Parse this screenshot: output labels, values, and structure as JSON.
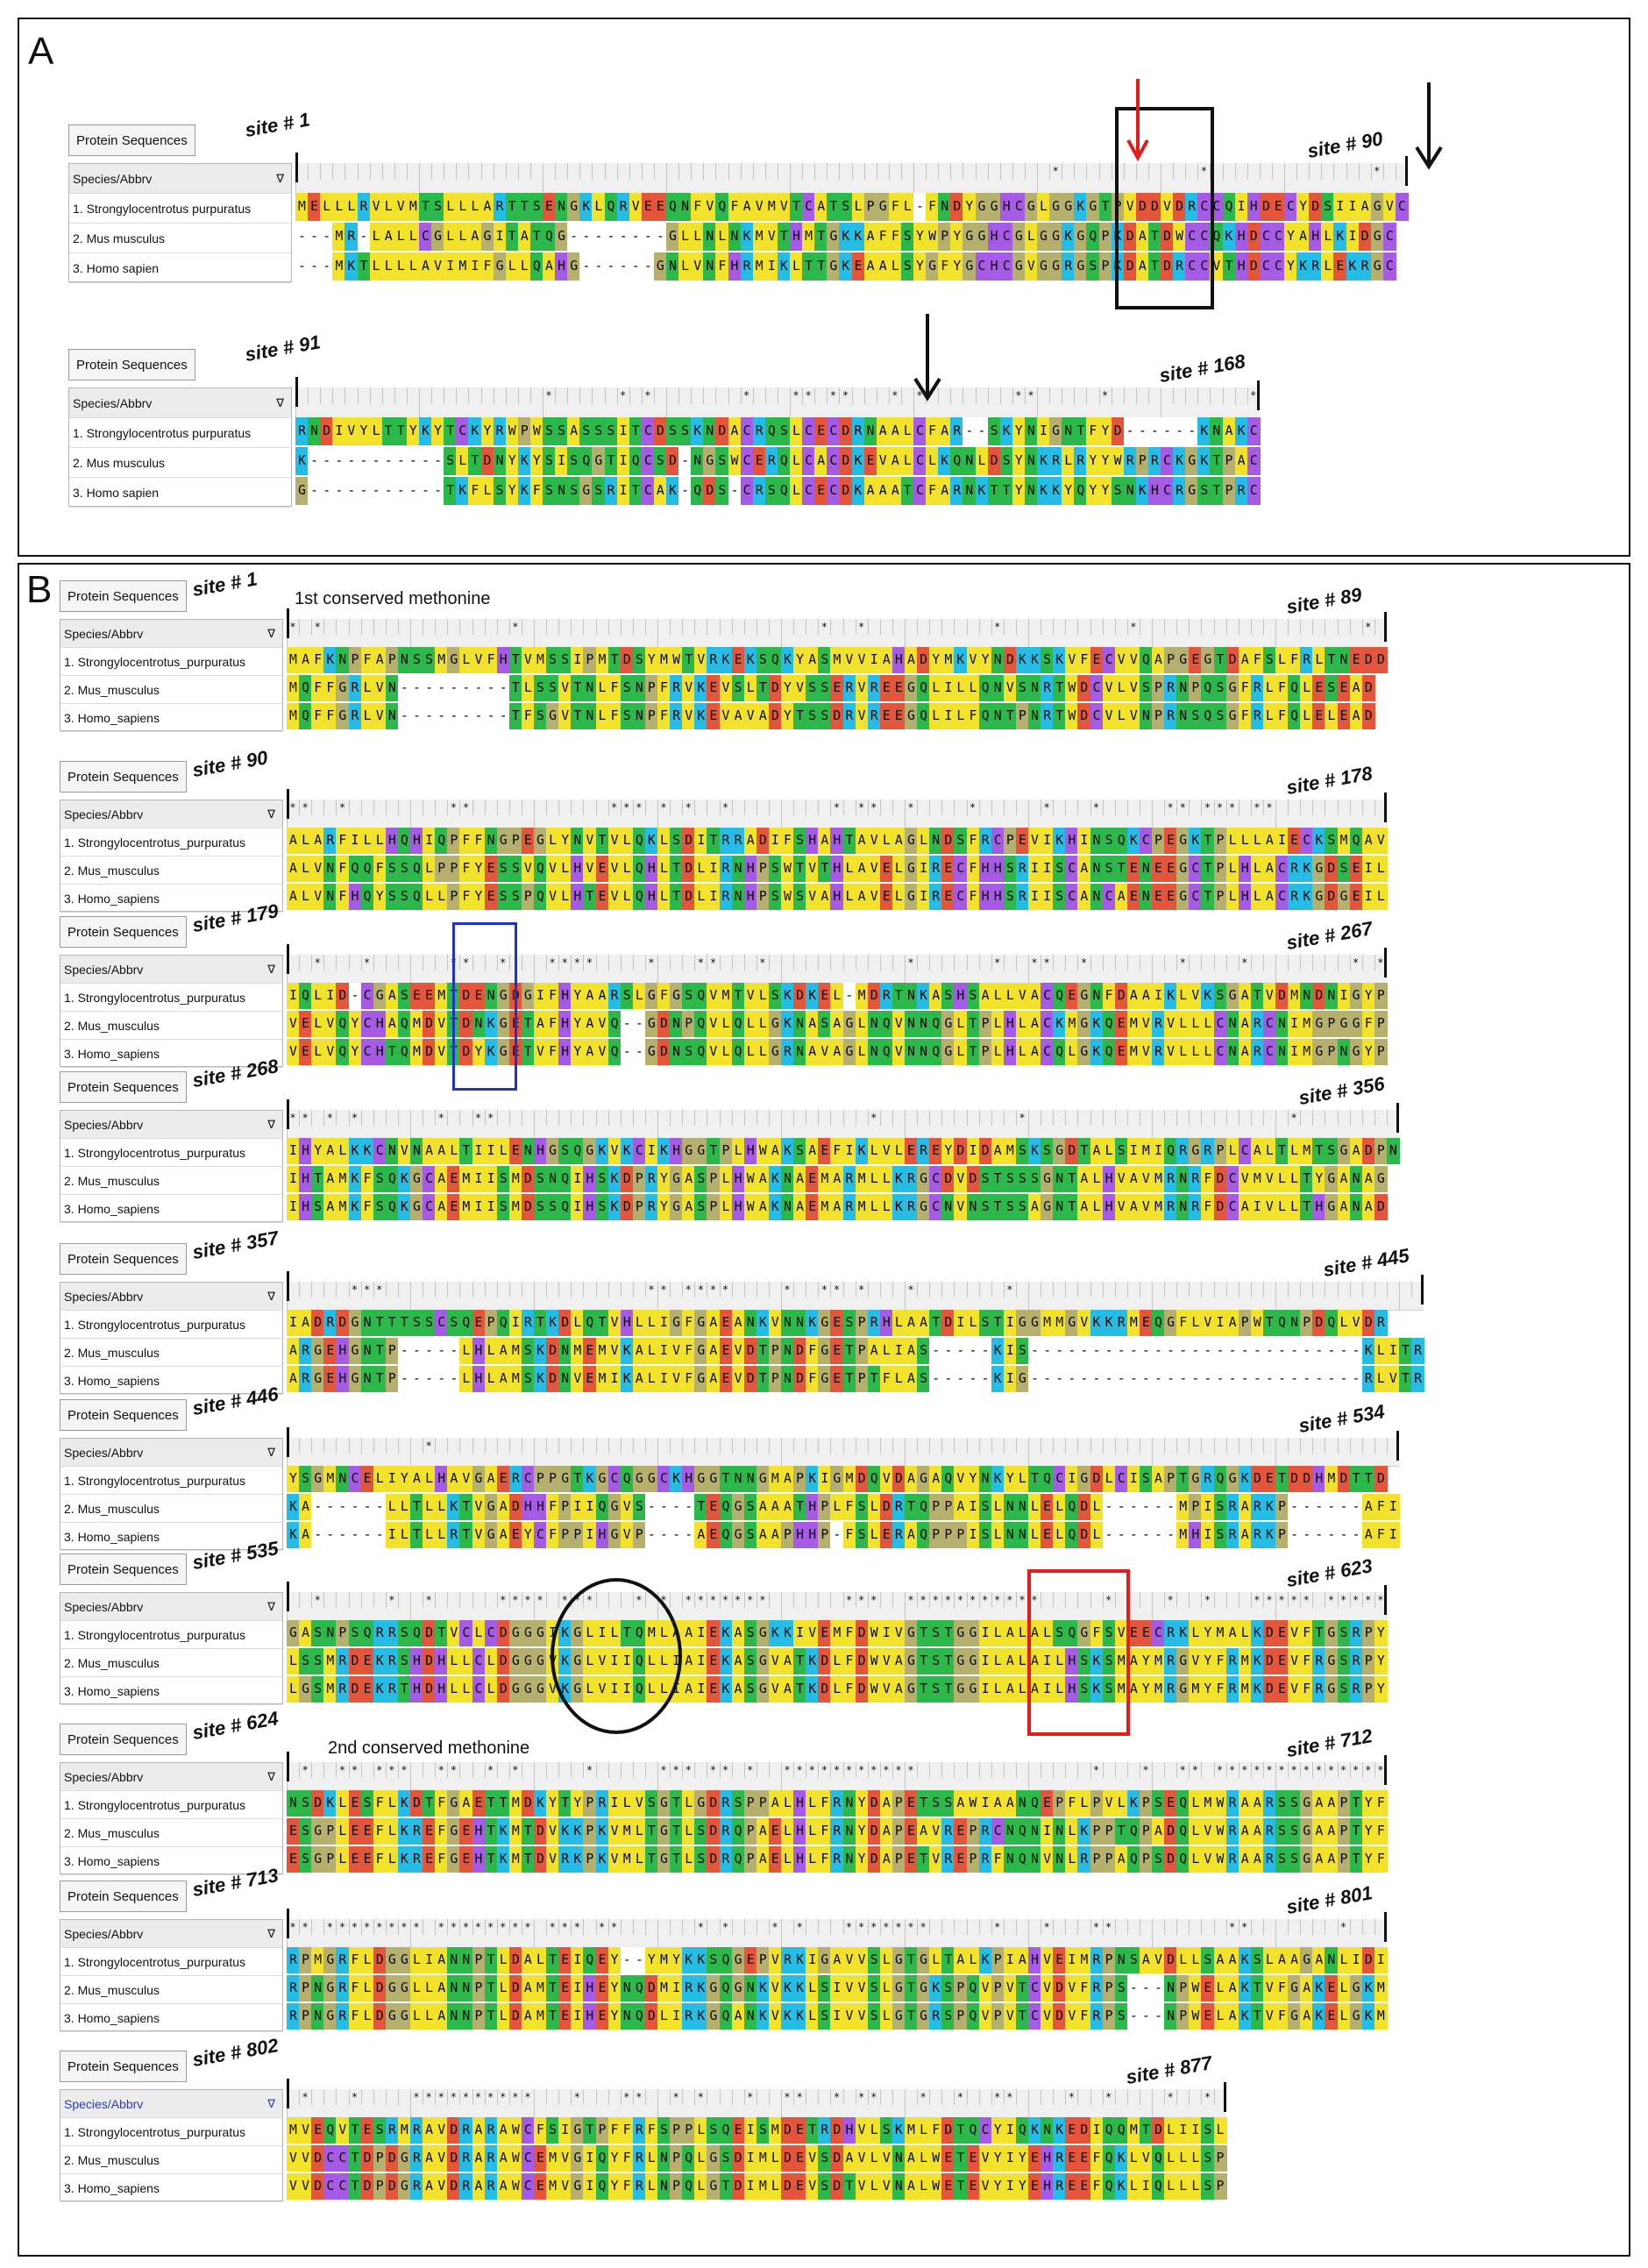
{
  "panels": {
    "a_label": "A",
    "b_label": "B"
  },
  "common": {
    "tab_label": "Protein Sequences",
    "species_header": "Species/Abbrv"
  },
  "colors": {
    "A": "#f2e22c",
    "L": "#f2e22c",
    "I": "#f2e22c",
    "V": "#f2e22c",
    "F": "#f2e22c",
    "M": "#f2e22c",
    "W": "#f2e22c",
    "Y": "#f2e22c",
    "G": "#b6b06e",
    "P": "#b6b06e",
    "S": "#2db84b",
    "T": "#2db84b",
    "N": "#2db84b",
    "Q": "#2db84b",
    "D": "#e3563b",
    "E": "#e3563b",
    "K": "#25bde6",
    "R": "#25bde6",
    "H": "#a65be4",
    "C": "#a65be4",
    "-": "#ffffff",
    "accent_red": "#e11d1d",
    "accent_blue": "#1f33c9"
  },
  "annotations": {
    "first_met": "1st conserved methonine",
    "second_met": "2nd conserved methonine"
  },
  "blocks": [
    {
      "panel": "A",
      "start_site": "site # 1",
      "end_site": "site # 90",
      "names": [
        "1. Strongylocentrotus purpuratus",
        "2. Mus musculus",
        "3. Homo sapien"
      ],
      "stars": ". . . . . . . . . . . . . . . . . . . . . . . . . . . . . . . . . . . . . . . . . . . . . . . . . . . . . . . . . . . . . . . . . . . . . . . . . . . . . . . . . . . . . . . . . . . . .",
      "rows": [
        "MELLLRVLVMTSLLLARTTSENGKLQRVEEQNFVQFAVMVTCATSLPGFL-FNDYGGHCGLGGKGTPVDDVDRCCQIHDECYDSIIAGVC",
        "---MR-LALLCGLLAGITATQG--------GLLNLNKMVTHMTGKKAFFSYWPYGGHCGLGGKGQPKDATDWCCQKHDCCYAHLKIDGC",
        "---MKTLLLLAVIMIFGLLQAHG------GNLVNFHRMIKLTTGKEAALSYGFYGCHCGVGGRGSPKDATDRCCVTHDCCYKRLEKRGC"
      ]
    },
    {
      "panel": "A",
      "start_site": "site # 91",
      "end_site": "site # 168",
      "names": [
        "1. Strongylocentrotus purpuratus",
        "2. Mus musculus",
        "3. Homo sapien"
      ],
      "rows": [
        "RNDIVYLTTYKYTCKYRWPWSSASSSITCDSSKNDACRQSLCECDRNAALCFAR--SKYNIGNTFYD------KNAKC",
        "K-----------SLTDNYKYSISQGTIQCSD-NGSWCERQLCACDKEVALCLKQNLDSYNKRLRYYWRPRCKGKTPAC",
        "G-----------TKFLSYKFSNSGSRITCAK-QDS-CRSQLCECDKAAATCFARNKTTYNKKYQYYSNKHCRGSTPRC"
      ]
    },
    {
      "panel": "B",
      "start_site": "site # 1",
      "end_site": "site # 89",
      "names": [
        "1. Strongylocentrotus_purpuratus",
        "2. Mus_musculus",
        "3. Homo_sapiens"
      ],
      "rows": [
        "MAFKNPFAPNSSMGLVFHTVMSSIPMTDSYMWTVRKEKSQKYASMVVIAHADYMKVYNDKKSKVFECVVQAPGEGTDAFSLFRLTNEDD",
        "MQFFGRLVN---------TLSSVTNLFSNPFRVKEVSLTDYVSSERVREEGQLILLQNVSNRTWDCVLVSPRNPQSGFRLFQLESEAD",
        "MQFFGRLVN---------TFSGVTNLFSNPFRVKEVAVADYTSSDRVREEGQLILFQNTPNRTWDCVLVNPRNSQSGFRLFQLELEAD"
      ]
    },
    {
      "panel": "B",
      "start_site": "site # 90",
      "end_site": "site # 178",
      "names": [
        "1. Strongylocentrotus_purpuratus",
        "2. Mus_musculus",
        "3. Homo_sapiens"
      ],
      "rows": [
        "ALARFILLHQHIQPFFNGPEGLYNVTVLQKLSDITRRADIFSHAHTAVLAGLNDSFRCPEVIKHINSQKCPEGKTPLLLAIECKSMQAV",
        "ALVNFQQFSSQLPPFYESSVQVLHVEVLQHLTDLIRNHPSWTVTHLAVELGIRECFHHSRIISCANSTENEEGCTPLHLACRKGDSEIL",
        "ALVNFHQYSSQLLPFYESSPQVLHTEVLQHLTDLIRNHPSWSVAHLAVELGIRECFHHSRIISCANCAENEEGCTPLHLACRKGDGEIL"
      ]
    },
    {
      "panel": "B",
      "start_site": "site # 179",
      "end_site": "site # 267",
      "names": [
        "1. Strongylocentrotus_purpuratus",
        "2. Mus_musculus",
        "3. Homo_sapiens"
      ],
      "rows": [
        "IQLID-CGASEEMTDENGDGIFHYAARSLGFGSQVMTVLSKDKEL-MDRTNKASHSALLVACQEGNFDAAIKLVKSGATVDMNDNIGYP",
        "VELVQYCHAQMDVTDNKGETAFHYAVQ--GDNPQVLQLLGKNASAGLNQVNNQGLTPLHLACKMGKQEMVRVLLLCNARCNIMGPGGFP",
        "VELVQYCHTQMDVTDYKGETVFHYAVQ--GDNSQVLQLLGRNAVAGLNQVNNQGLTPLHLACQLGKQEMVRVLLLCNARCNIMGPNGYP"
      ]
    },
    {
      "panel": "B",
      "start_site": "site # 268",
      "end_site": "site # 356",
      "names": [
        "1. Strongylocentrotus_purpuratus",
        "2. Mus_musculus",
        "3. Homo_sapiens"
      ],
      "rows": [
        "IHYALKKCNVNAALTIILENHGSQGKVKCIKHGGTPLHWAKSAEFIKLVLEREYDIDAMSKSGDTALSIMIQRGRPLCALTLMTSGADPN",
        "IHTAMKFSQKGCAEMIISMDSNQIHSKDPRYGASPLHWAKNAEMARMLLKRGCDVDSTSSSGNTALHVAVMRNRFDCVMVLLTYGANAG",
        "IHSAMKFSQKGCAEMIISMDSSQIHSKDPRYGASPLHWAKNAEMARMLLKRGCNVNSTSSAGNTALHVAVMRNRFDCAIVLLTHGANAD"
      ]
    },
    {
      "panel": "B",
      "start_site": "site # 357",
      "end_site": "site # 445",
      "names": [
        "1. Strongylocentrotus_purpuratus",
        "2. Mus_musculus",
        "3. Homo_sapiens"
      ],
      "rows": [
        "IADRDGNTTTSSCSQEPQIRTKDLQTVHLLIGFGAEANKVNNKGESPRHLAATDILSTIGGMMGVKKRMEQGFLVIAPWTQNPDQLVDR",
        "ARGEHGNTP-----LHLAMSKDNMEMVKALIVFGAEVDTPNDFGETPALIAS-----KIS---------------------------KLITR",
        "ARGEHGNTP-----LHLAMSKDNVEMIKALIVFGAEVDTPNDFGETPTFLAS-----KIG---------------------------RLVTR"
      ]
    },
    {
      "panel": "B",
      "start_site": "site # 446",
      "end_site": "site # 534",
      "names": [
        "1. Strongylocentrotus_purpuratus",
        "2. Mus_musculus",
        "3. Homo_sapiens"
      ],
      "rows": [
        "YSGMNCELIYALHAVGAERCPPGTKGCQGGCKHGGTNNGMAPKIGMDQVDAGAQVYNKYLTQCIGDLCISAPTGRQGKDETDDHMDTTD",
        "KA------LLTLLKTVGADHHFPIIQGVS----TEQGSAAATHPLFSLDRTQPPAISLNNLELQDL------MPISRARKP------AFI",
        "KA------ILTLLRTVGAEYCFPPIHGVP----AEQGSAAPHHP-FSLERAQPPPISLNNLELQDL------MHISRARKP------AFI"
      ]
    },
    {
      "panel": "B",
      "start_site": "site # 535",
      "end_site": "site # 623",
      "names": [
        "1. Strongylocentrotus_purpuratus",
        "2. Mus_musculus",
        "3. Homo_sapiens"
      ],
      "rows": [
        "GASNPSQRRSQDTVCLCDGGGIKGLILTQMLAAIEKASGKKIVEMFDWIVGTSTGGILALALSQGFSVEECRKLYMALKDEVFTGSRPY",
        "LSSMRDEKRSHDHLLCLDGGGVKGLVIIQLLIAIEKASGVATKDLFDWVAGTSTGGILALAILHSKSMAYMRGVYFRMKDEVFRGSRPY",
        "LGSMRDEKRTHDHLLCLDGGGVKGLVIIQLLIAIEKASGVATKDLFDWVAGTSTGGILALAILHSKSMAYMRGMYFRMKDEVFRGSRPY"
      ]
    },
    {
      "panel": "B",
      "start_site": "site # 624",
      "end_site": "site # 712",
      "names": [
        "1. Strongylocentrotus_purpuratus",
        "2. Mus_musculus",
        "3. Homo_sapiens"
      ],
      "rows": [
        "NSDKLESFLKDTFGAETTMDKYTYPRILVSGTLGDRSPPALHLFRNYDAPETSSAWIAANQEPFLPVLKPSEQLMWRAARSSGAAPTYF",
        "ESGPLEEFLKREFGEHTKMTDVKKPKVMLTGTLSDRQPAELHLFRNYDAPEAVREPRCNQNINLKPPTQPADQLVWRAARSSGAAPTYF",
        "ESGPLEEFLKREFGEHTKMTDVRKPKVMLTGTLSDRQPAELHLFRNYDAPETVREPRFNQNVNLRPPAQPSDQLVWRAARSSGAAPTYF"
      ]
    },
    {
      "panel": "B",
      "start_site": "site # 713",
      "end_site": "site # 801",
      "names": [
        "1. Strongylocentrotus_purpuratus",
        "2. Mus_musculus",
        "3. Homo_sapiens"
      ],
      "rows": [
        "RPMGRFLDGGLIANNPTLDALTEIQEY--YMYKKSQGEPVRKIGAVVSLGTGLTALKPIAHVEIMRPNSAVDLLSAAKSLAAGANLIDI",
        "RPNGRFLDGGLLANNPTLDAMTEIHEYNQDMIRKGQGNKVKKLSIVVSLGTGKSPQVPVTCVDVFRPS---NPWELAKTVFGAKELGKM",
        "RPNGRFLDGGLLANNPTLDAMTEIHEYNQDLIRKGQANKVKKLSIVVSLGTGRSPQVPVTCVDVFRPS---NPWELAKTVFGAKELGKM"
      ]
    },
    {
      "panel": "B",
      "start_site": "site # 802",
      "end_site": "site # 877",
      "species_header_color": "#2b3db6",
      "names": [
        "1. Strongylocentrotus_purpuratus",
        "2. Mus_musculus",
        "3. Homo_sapiens"
      ],
      "rows": [
        "MVEQVTESRMRAVDRARAWCFSIGTPFFRFSPPLSQEISMDETRDHVLSKMLFDTQCYIQKNKEDIQQMTDLIISL",
        "VVDCCTDPDGRAVDRARAWCEMVGIQYFRLNPQLGSDIMLDEVSDAVLVNALWETEVYIYEHREEFQKLVQLLLSP",
        "VVDCCTDPDGRAVDRARAWCEMVGIQYFRLNPQLGTDIMLDEVSDTVLVNALWETEVYIYEHREEFQKLIQLLLSP"
      ]
    }
  ]
}
